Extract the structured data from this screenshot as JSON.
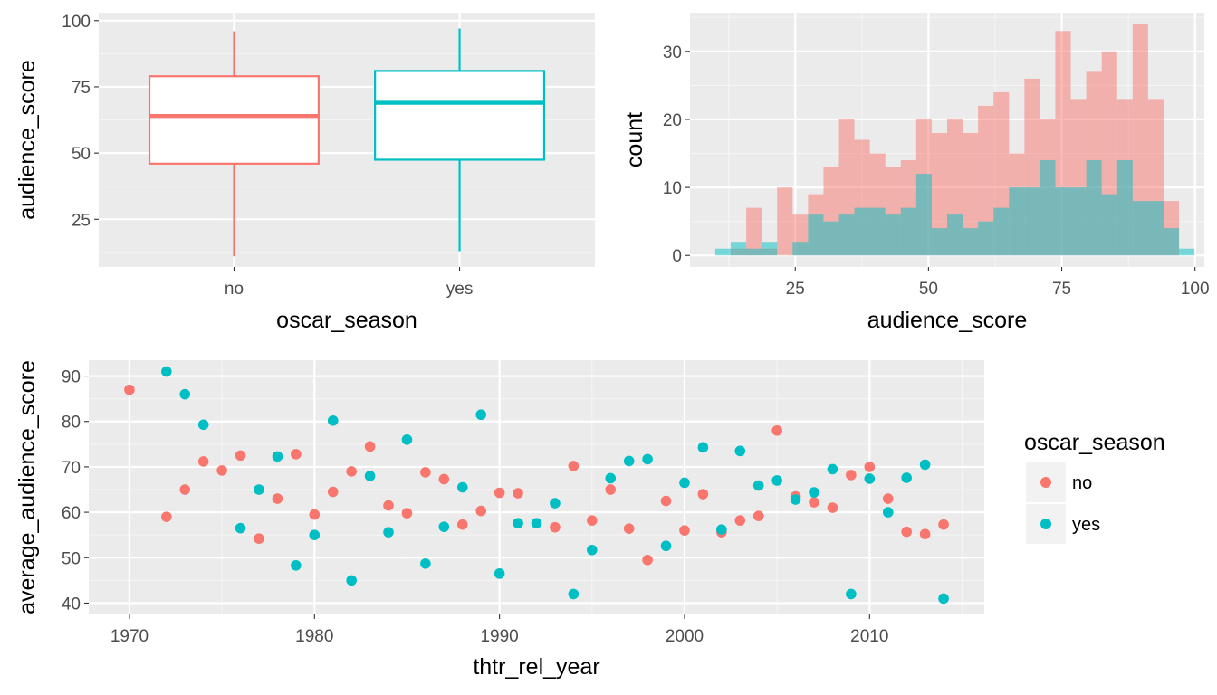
{
  "colors": {
    "no": "#F8766D",
    "yes": "#00BFC4",
    "panel_bg": "#EBEBEB",
    "grid_major": "#FFFFFF",
    "grid_minor": "#F5F5F5",
    "tick_text": "#4D4D4D"
  },
  "legend": {
    "title": "oscar_season",
    "items": [
      {
        "key": "no",
        "label": "no"
      },
      {
        "key": "yes",
        "label": "yes"
      }
    ]
  },
  "chart_data": [
    {
      "type": "box",
      "xlabel": "oscar_season",
      "ylabel": "audience_score",
      "ylim": [
        7,
        103
      ],
      "yticks": [
        25,
        50,
        75,
        100
      ],
      "groups": [
        {
          "name": "no",
          "min": 11,
          "q1": 46,
          "median": 64,
          "q3": 79,
          "max": 96
        },
        {
          "name": "yes",
          "min": 13,
          "q1": 47.5,
          "median": 69,
          "q3": 81,
          "max": 97
        }
      ]
    },
    {
      "type": "histogram",
      "xlabel": "audience_score",
      "ylabel": "count",
      "xlim": [
        5.25,
        101.75
      ],
      "ylim": [
        -1.7,
        35.7
      ],
      "xticks": [
        25,
        50,
        75,
        100
      ],
      "yticks": [
        0,
        10,
        20,
        30
      ],
      "bin_start": 10,
      "bin_width": 2.9,
      "series": [
        {
          "name": "no",
          "counts": [
            0,
            1,
            7,
            1,
            10,
            6,
            9,
            13,
            20,
            17,
            15,
            13,
            14,
            20,
            18,
            20,
            18,
            22,
            24,
            15,
            26,
            20,
            33,
            23,
            27,
            30,
            23,
            34,
            23,
            8,
            0
          ]
        },
        {
          "name": "yes",
          "counts": [
            1,
            2,
            1,
            2,
            0,
            2,
            6,
            5,
            6,
            7,
            7,
            6,
            7,
            12,
            4,
            6,
            4,
            5,
            7,
            10,
            10,
            14,
            10,
            10,
            14,
            9,
            14,
            8,
            8,
            4,
            1
          ]
        }
      ]
    },
    {
      "type": "scatter",
      "xlabel": "thtr_rel_year",
      "ylabel": "average_audience_score",
      "xlim": [
        1967.8,
        2016.2
      ],
      "ylim": [
        37.5,
        93.5
      ],
      "xticks": [
        1970,
        1980,
        1990,
        2000,
        2010
      ],
      "yticks": [
        40,
        50,
        60,
        70,
        80,
        90
      ],
      "series": [
        {
          "name": "no",
          "points": [
            [
              1970,
              87
            ],
            [
              1972,
              59
            ],
            [
              1973,
              65
            ],
            [
              1974,
              71.2
            ],
            [
              1975,
              69.2
            ],
            [
              1976,
              72.5
            ],
            [
              1977,
              54.2
            ],
            [
              1978,
              63
            ],
            [
              1979,
              72.8
            ],
            [
              1980,
              59.5
            ],
            [
              1981,
              64.5
            ],
            [
              1982,
              69
            ],
            [
              1983,
              74.5
            ],
            [
              1984,
              61.5
            ],
            [
              1985,
              59.8
            ],
            [
              1986,
              68.8
            ],
            [
              1987,
              67.3
            ],
            [
              1988,
              57.3
            ],
            [
              1989,
              60.3
            ],
            [
              1990,
              64.3
            ],
            [
              1991,
              64.2
            ],
            [
              1993,
              56.7
            ],
            [
              1994,
              70.2
            ],
            [
              1995,
              58.2
            ],
            [
              1996,
              65
            ],
            [
              1997,
              56.4
            ],
            [
              1998,
              49.5
            ],
            [
              1999,
              62.5
            ],
            [
              2000,
              56
            ],
            [
              2001,
              64
            ],
            [
              2002,
              55.6
            ],
            [
              2003,
              58.2
            ],
            [
              2004,
              59.2
            ],
            [
              2005,
              78
            ],
            [
              2006,
              63.5
            ],
            [
              2007,
              62.2
            ],
            [
              2008,
              61
            ],
            [
              2009,
              68.2
            ],
            [
              2010,
              70
            ],
            [
              2011,
              63
            ],
            [
              2012,
              55.7
            ],
            [
              2013,
              55.2
            ],
            [
              2014,
              57.3
            ]
          ]
        },
        {
          "name": "yes",
          "points": [
            [
              1972,
              91
            ],
            [
              1973,
              86
            ],
            [
              1974,
              79.3
            ],
            [
              1976,
              56.5
            ],
            [
              1977,
              65
            ],
            [
              1978,
              72.3
            ],
            [
              1979,
              48.3
            ],
            [
              1980,
              55
            ],
            [
              1981,
              80.2
            ],
            [
              1982,
              45
            ],
            [
              1983,
              68
            ],
            [
              1984,
              55.6
            ],
            [
              1985,
              76
            ],
            [
              1986,
              48.7
            ],
            [
              1987,
              56.8
            ],
            [
              1988,
              65.5
            ],
            [
              1989,
              81.5
            ],
            [
              1990,
              46.5
            ],
            [
              1991,
              57.6
            ],
            [
              1992,
              57.6
            ],
            [
              1993,
              62
            ],
            [
              1994,
              42
            ],
            [
              1995,
              51.7
            ],
            [
              1996,
              67.5
            ],
            [
              1997,
              71.3
            ],
            [
              1998,
              71.7
            ],
            [
              1999,
              52.6
            ],
            [
              2000,
              66.5
            ],
            [
              2001,
              74.3
            ],
            [
              2002,
              56.2
            ],
            [
              2003,
              73.5
            ],
            [
              2004,
              65.9
            ],
            [
              2005,
              67
            ],
            [
              2006,
              62.8
            ],
            [
              2007,
              64.4
            ],
            [
              2008,
              69.5
            ],
            [
              2009,
              42
            ],
            [
              2010,
              67.4
            ],
            [
              2011,
              60
            ],
            [
              2012,
              67.6
            ],
            [
              2013,
              70.5
            ],
            [
              2014,
              41
            ]
          ]
        }
      ]
    }
  ]
}
